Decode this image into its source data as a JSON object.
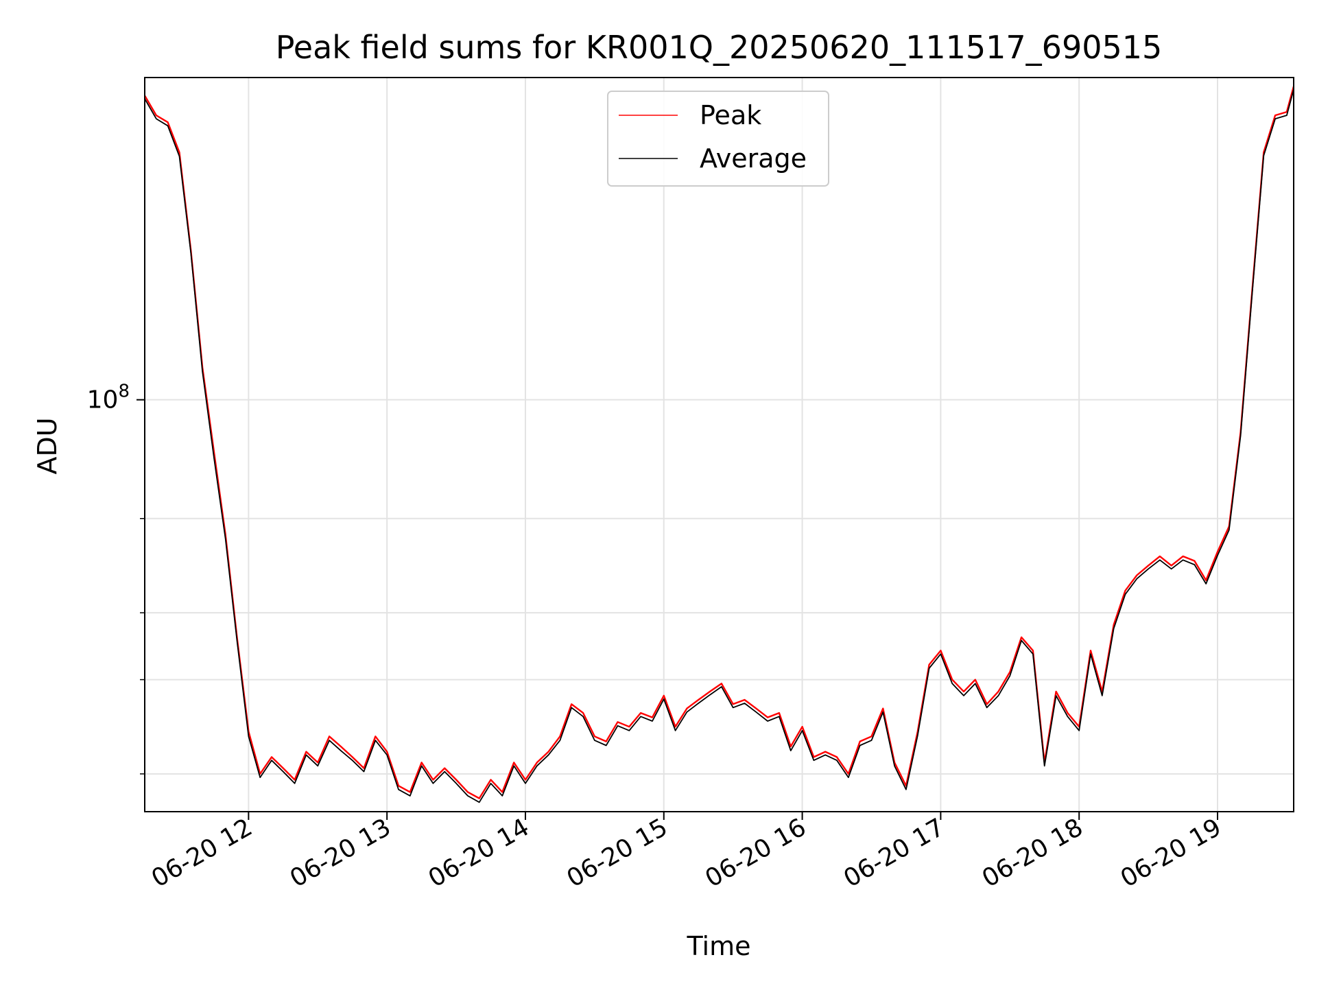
{
  "chart_data": {
    "type": "line",
    "title": "Peak field sums for KR001Q_20250620_111517_690515",
    "xlabel": "Time",
    "ylabel": "ADU",
    "y_scale": "log",
    "xlim": [
      "2025-06-20 11:15",
      "2025-06-20 19:33"
    ],
    "ylim": [
      17000000,
      400000000
    ],
    "x_ticks": [
      "06-20 12",
      "06-20 13",
      "06-20 14",
      "06-20 15",
      "06-20 16",
      "06-20 17",
      "06-20 18",
      "06-20 19"
    ],
    "y_ticks": [
      "10^8"
    ],
    "grid": true,
    "legend": {
      "placement": "upper-center"
    },
    "x": [
      "11:15",
      "11:20",
      "11:25",
      "11:30",
      "11:35",
      "11:40",
      "11:45",
      "11:50",
      "11:55",
      "12:00",
      "12:05",
      "12:10",
      "12:15",
      "12:20",
      "12:25",
      "12:30",
      "12:35",
      "12:40",
      "12:45",
      "12:50",
      "12:55",
      "13:00",
      "13:05",
      "13:10",
      "13:15",
      "13:20",
      "13:25",
      "13:30",
      "13:35",
      "13:40",
      "13:45",
      "13:50",
      "13:55",
      "14:00",
      "14:05",
      "14:10",
      "14:15",
      "14:20",
      "14:25",
      "14:30",
      "14:35",
      "14:40",
      "14:45",
      "14:50",
      "14:55",
      "15:00",
      "15:05",
      "15:10",
      "15:15",
      "15:20",
      "15:25",
      "15:30",
      "15:35",
      "15:40",
      "15:45",
      "15:50",
      "15:55",
      "16:00",
      "16:05",
      "16:10",
      "16:15",
      "16:20",
      "16:25",
      "16:30",
      "16:35",
      "16:40",
      "16:45",
      "16:50",
      "16:55",
      "17:00",
      "17:05",
      "17:10",
      "17:15",
      "17:20",
      "17:25",
      "17:30",
      "17:35",
      "17:40",
      "17:45",
      "17:50",
      "17:55",
      "18:00",
      "18:05",
      "18:10",
      "18:15",
      "18:20",
      "18:25",
      "18:30",
      "18:35",
      "18:40",
      "18:45",
      "18:50",
      "18:55",
      "19:00",
      "19:05",
      "19:10",
      "19:15",
      "19:20",
      "19:25",
      "19:30",
      "19:33"
    ],
    "series": [
      {
        "name": "Peak",
        "color": "#ff0000",
        "values": [
          370000000,
          340000000,
          330000000,
          290000000,
          190000000,
          115000000,
          80000000,
          56000000,
          36000000,
          24000000,
          20000000,
          21500000,
          20500000,
          19500000,
          22000000,
          21000000,
          23500000,
          22500000,
          21500000,
          20500000,
          23500000,
          22000000,
          19000000,
          18500000,
          21000000,
          19500000,
          20500000,
          19500000,
          18500000,
          18000000,
          19500000,
          18500000,
          21000000,
          19500000,
          21000000,
          22000000,
          23500000,
          27000000,
          26000000,
          23500000,
          23000000,
          25000000,
          24500000,
          26000000,
          25500000,
          28000000,
          24500000,
          26500000,
          27500000,
          28500000,
          29500000,
          27000000,
          27500000,
          26500000,
          25500000,
          26000000,
          22500000,
          24500000,
          21500000,
          22000000,
          21500000,
          20000000,
          23000000,
          23500000,
          26500000,
          21000000,
          19000000,
          24000000,
          32000000,
          34000000,
          30000000,
          28500000,
          30000000,
          27000000,
          28500000,
          31000000,
          36000000,
          34000000,
          21000000,
          28500000,
          26000000,
          24500000,
          34000000,
          28500000,
          38000000,
          44000000,
          47000000,
          49000000,
          51000000,
          49000000,
          51000000,
          50000000,
          46000000,
          52000000,
          58000000,
          87000000,
          160000000,
          290000000,
          340000000,
          345000000,
          385000000
        ]
      },
      {
        "name": "Average",
        "color": "#000000",
        "values": [
          365000000,
          335000000,
          325000000,
          285000000,
          188000000,
          113000000,
          78000000,
          55000000,
          35500000,
          23500000,
          19700000,
          21200000,
          20200000,
          19200000,
          21700000,
          20700000,
          23100000,
          22100000,
          21200000,
          20200000,
          23100000,
          21700000,
          18700000,
          18200000,
          20700000,
          19200000,
          20200000,
          19200000,
          18200000,
          17700000,
          19200000,
          18200000,
          20700000,
          19200000,
          20700000,
          21700000,
          23100000,
          26600000,
          25600000,
          23100000,
          22600000,
          24600000,
          24100000,
          25600000,
          25100000,
          27600000,
          24100000,
          26100000,
          27100000,
          28100000,
          29100000,
          26600000,
          27100000,
          26100000,
          25100000,
          25600000,
          22100000,
          24100000,
          21200000,
          21700000,
          21200000,
          19700000,
          22600000,
          23100000,
          26100000,
          20700000,
          18700000,
          23600000,
          31500000,
          33500000,
          29500000,
          28000000,
          29500000,
          26600000,
          28000000,
          30500000,
          35500000,
          33500000,
          20700000,
          28000000,
          25600000,
          24100000,
          33500000,
          28000000,
          37400000,
          43300000,
          46300000,
          48300000,
          50200000,
          48300000,
          50200000,
          49200000,
          45300000,
          51200000,
          57100000,
          85700000,
          158000000,
          286000000,
          335000000,
          340000000,
          380000000
        ]
      }
    ]
  }
}
